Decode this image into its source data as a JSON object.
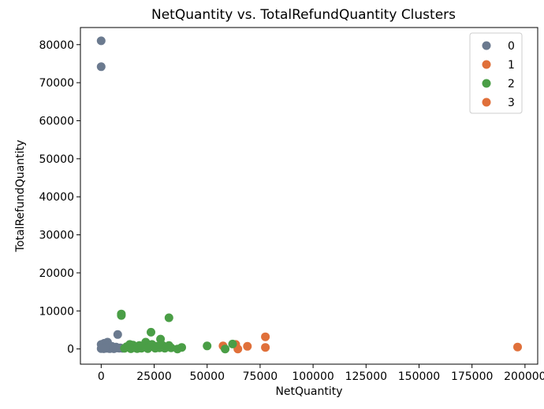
{
  "chart_data": {
    "type": "scatter",
    "title": "NetQuantity vs. TotalRefundQuantity Clusters",
    "xlabel": "NetQuantity",
    "ylabel": "TotalRefundQuantity",
    "xlim": [
      -9800,
      206000
    ],
    "ylim": [
      -4000,
      84500
    ],
    "xticks": [
      0,
      25000,
      50000,
      75000,
      100000,
      125000,
      150000,
      175000,
      200000
    ],
    "yticks": [
      0,
      10000,
      20000,
      30000,
      40000,
      50000,
      60000,
      70000,
      80000
    ],
    "grid": false,
    "legend_position": "top-right",
    "series": [
      {
        "name": "0",
        "color": "#6b7a8f",
        "points": [
          [
            0,
            81000
          ],
          [
            0,
            74200
          ],
          [
            7800,
            3800
          ],
          [
            3000,
            1800
          ],
          [
            1500,
            1500
          ],
          [
            0,
            1200
          ],
          [
            500,
            900
          ],
          [
            1000,
            700
          ],
          [
            2000,
            600
          ],
          [
            3500,
            500
          ],
          [
            4500,
            450
          ],
          [
            5500,
            400
          ],
          [
            6500,
            300
          ],
          [
            7500,
            250
          ],
          [
            8500,
            200
          ],
          [
            2500,
            150
          ],
          [
            0,
            100
          ],
          [
            1200,
            50
          ],
          [
            4000,
            80
          ],
          [
            6000,
            60
          ],
          [
            300,
            300
          ],
          [
            800,
            1300
          ],
          [
            2200,
            1000
          ],
          [
            3200,
            900
          ],
          [
            5000,
            700
          ],
          [
            7000,
            500
          ],
          [
            9000,
            300
          ],
          [
            10000,
            150
          ],
          [
            1800,
            400
          ],
          [
            600,
            200
          ]
        ]
      },
      {
        "name": "1",
        "color": "#e0703a",
        "points": [
          [
            57500,
            800
          ],
          [
            63500,
            1200
          ],
          [
            64500,
            0
          ],
          [
            69000,
            700
          ],
          [
            77500,
            3200
          ],
          [
            77500,
            400
          ],
          [
            196500,
            500
          ]
        ]
      },
      {
        "name": "2",
        "color": "#4a9e46",
        "points": [
          [
            9500,
            9200
          ],
          [
            9500,
            8800
          ],
          [
            32000,
            8200
          ],
          [
            23500,
            4400
          ],
          [
            28000,
            2600
          ],
          [
            21000,
            1800
          ],
          [
            18000,
            900
          ],
          [
            15000,
            1000
          ],
          [
            13500,
            1200
          ],
          [
            12000,
            600
          ],
          [
            16000,
            300
          ],
          [
            20000,
            500
          ],
          [
            24000,
            1200
          ],
          [
            26000,
            700
          ],
          [
            29000,
            900
          ],
          [
            32000,
            900
          ],
          [
            30000,
            200
          ],
          [
            33000,
            300
          ],
          [
            36000,
            0
          ],
          [
            38000,
            400
          ],
          [
            50000,
            800
          ],
          [
            58500,
            0
          ],
          [
            62000,
            1300
          ],
          [
            11000,
            150
          ],
          [
            14000,
            50
          ],
          [
            17000,
            100
          ],
          [
            22000,
            100
          ],
          [
            25500,
            200
          ],
          [
            27500,
            300
          ],
          [
            31000,
            500
          ],
          [
            19000,
            200
          ],
          [
            23000,
            600
          ]
        ]
      },
      {
        "name": "3",
        "color": "#e0703a",
        "points": []
      }
    ]
  }
}
